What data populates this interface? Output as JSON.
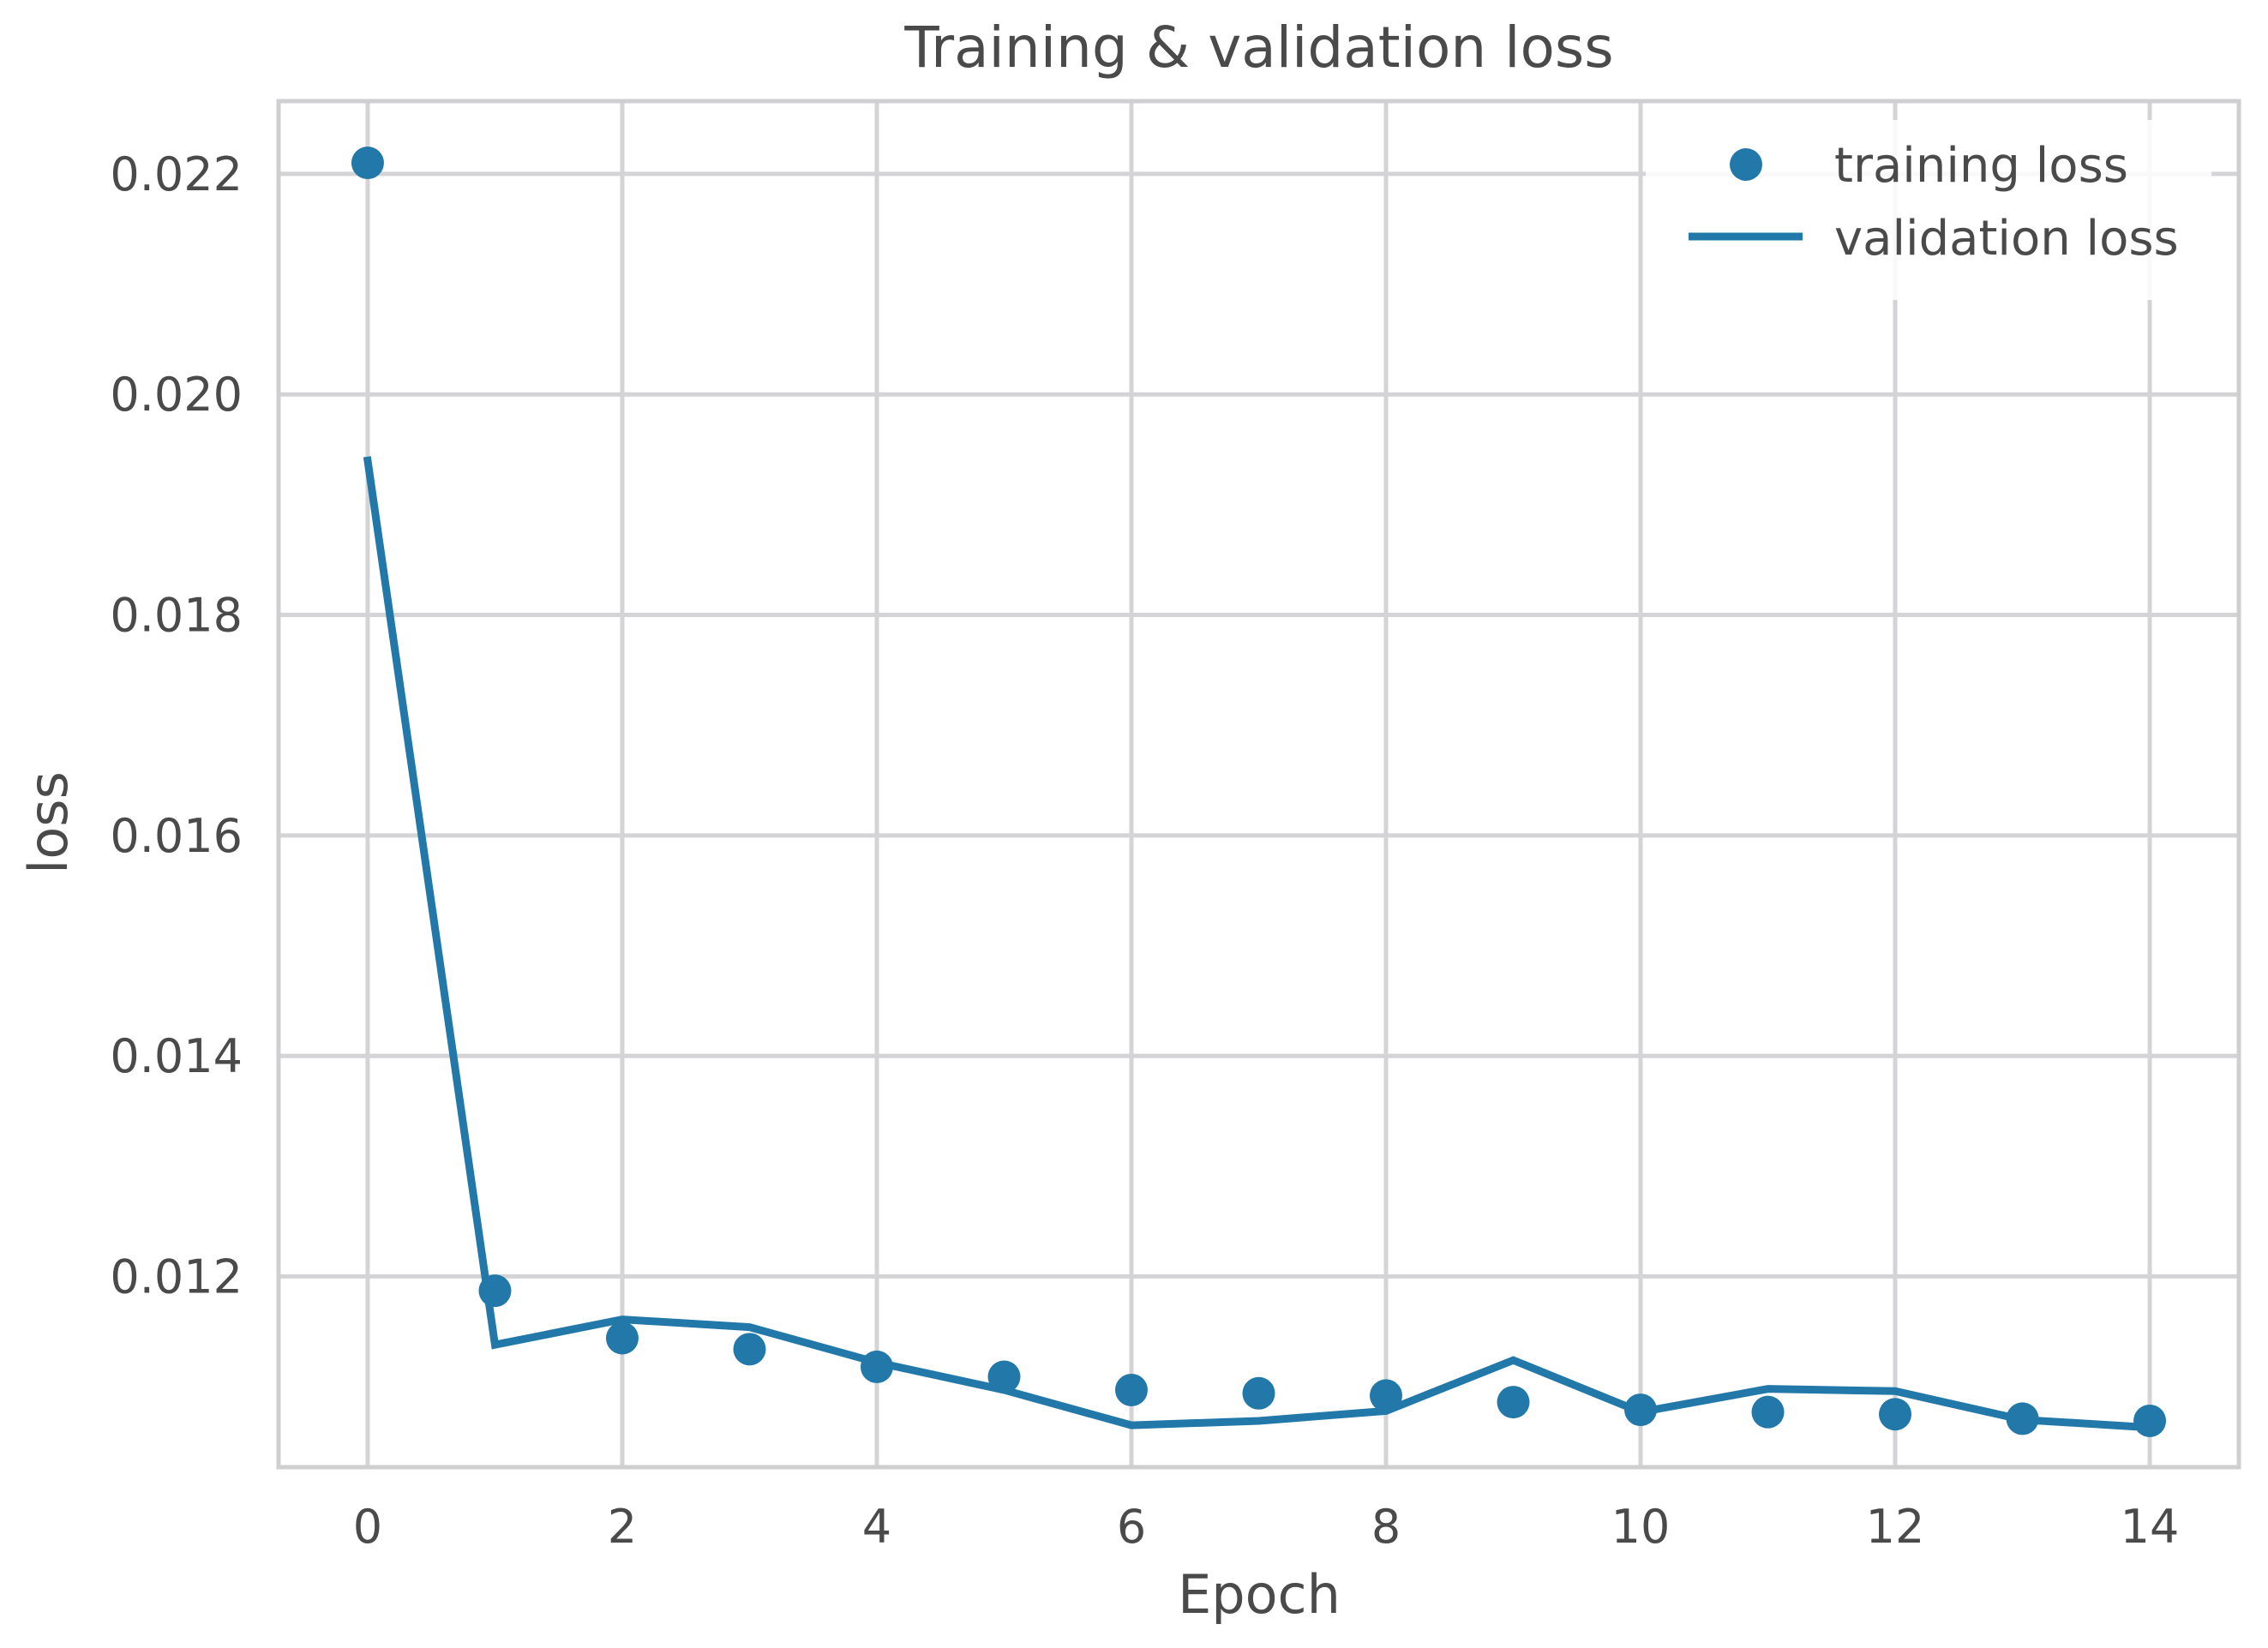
{
  "chart_data": {
    "type": "line",
    "title": "Training & validation loss",
    "xlabel": "Epoch",
    "ylabel": "loss",
    "xlim": [
      -0.7,
      14.7
    ],
    "ylim": [
      0.01027,
      0.02266
    ],
    "xticks": [
      0,
      2,
      4,
      6,
      8,
      10,
      12,
      14
    ],
    "xtick_labels": [
      "0",
      "2",
      "4",
      "6",
      "8",
      "10",
      "12",
      "14"
    ],
    "yticks": [
      0.012,
      0.014,
      0.016,
      0.018,
      0.02,
      0.022
    ],
    "ytick_labels": [
      "0.012",
      "0.014",
      "0.016",
      "0.018",
      "0.020",
      "0.022"
    ],
    "grid": true,
    "legend_position": "top-right",
    "color": "#2278a8",
    "x": [
      0,
      1,
      2,
      3,
      4,
      5,
      6,
      7,
      8,
      9,
      10,
      11,
      12,
      13,
      14
    ],
    "series": [
      {
        "name": "training loss",
        "style": "markers",
        "values": [
          0.0221,
          0.01187,
          0.01144,
          0.01134,
          0.01118,
          0.01109,
          0.01097,
          0.01094,
          0.01092,
          0.01086,
          0.01079,
          0.01077,
          0.01075,
          0.01071,
          0.01069
        ]
      },
      {
        "name": "validation loss",
        "style": "line",
        "values": [
          0.0194,
          0.01138,
          0.01161,
          0.01154,
          0.01122,
          0.01097,
          0.01065,
          0.01069,
          0.01078,
          0.01124,
          0.01077,
          0.01098,
          0.01096,
          0.0107,
          0.01063
        ]
      }
    ]
  }
}
